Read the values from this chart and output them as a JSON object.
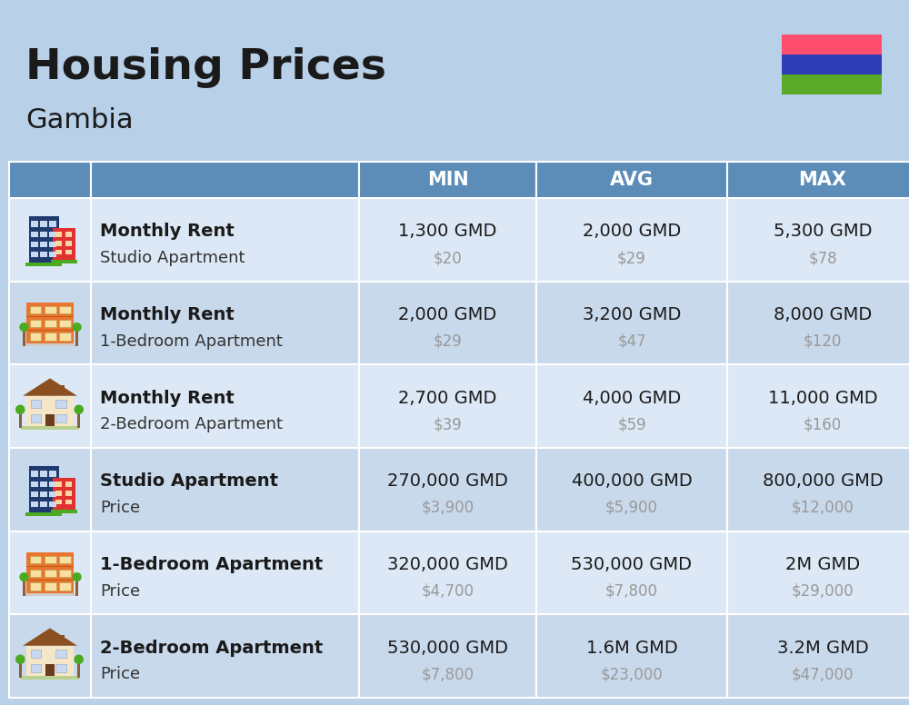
{
  "title": "Housing Prices",
  "subtitle": "Gambia",
  "background_color": "#b8d0e8",
  "header_color": "#5b8db8",
  "header_text_color": "#ffffff",
  "row_colors": [
    "#dce8f5",
    "#c9d9ec"
  ],
  "col_headers": [
    "MIN",
    "AVG",
    "MAX"
  ],
  "rows": [
    {
      "bold_label": "Monthly Rent",
      "sub_label": "Studio Apartment",
      "min_gmd": "1,300 GMD",
      "min_usd": "$20",
      "avg_gmd": "2,000 GMD",
      "avg_usd": "$29",
      "max_gmd": "5,300 GMD",
      "max_usd": "$78",
      "icon_type": "studio_blue"
    },
    {
      "bold_label": "Monthly Rent",
      "sub_label": "1-Bedroom Apartment",
      "min_gmd": "2,000 GMD",
      "min_usd": "$29",
      "avg_gmd": "3,200 GMD",
      "avg_usd": "$47",
      "max_gmd": "8,000 GMD",
      "max_usd": "$120",
      "icon_type": "apartment_orange"
    },
    {
      "bold_label": "Monthly Rent",
      "sub_label": "2-Bedroom Apartment",
      "min_gmd": "2,700 GMD",
      "min_usd": "$39",
      "avg_gmd": "4,000 GMD",
      "avg_usd": "$59",
      "max_gmd": "11,000 GMD",
      "max_usd": "$160",
      "icon_type": "house_beige"
    },
    {
      "bold_label": "Studio Apartment",
      "sub_label": "Price",
      "min_gmd": "270,000 GMD",
      "min_usd": "$3,900",
      "avg_gmd": "400,000 GMD",
      "avg_usd": "$5,900",
      "max_gmd": "800,000 GMD",
      "max_usd": "$12,000",
      "icon_type": "studio_blue"
    },
    {
      "bold_label": "1-Bedroom Apartment",
      "sub_label": "Price",
      "min_gmd": "320,000 GMD",
      "min_usd": "$4,700",
      "avg_gmd": "530,000 GMD",
      "avg_usd": "$7,800",
      "max_gmd": "2M GMD",
      "max_usd": "$29,000",
      "icon_type": "apartment_orange"
    },
    {
      "bold_label": "2-Bedroom Apartment",
      "sub_label": "Price",
      "min_gmd": "530,000 GMD",
      "min_usd": "$7,800",
      "avg_gmd": "1.6M GMD",
      "avg_usd": "$23,000",
      "max_gmd": "3.2M GMD",
      "max_usd": "$47,000",
      "icon_type": "house_beige"
    }
  ],
  "flag_colors": [
    "#ff4d6d",
    "#2e3db5",
    "#5aaa2a"
  ],
  "title_fontsize": 34,
  "subtitle_fontsize": 22,
  "header_fontsize": 15,
  "cell_fontsize": 14,
  "usd_fontsize": 12
}
